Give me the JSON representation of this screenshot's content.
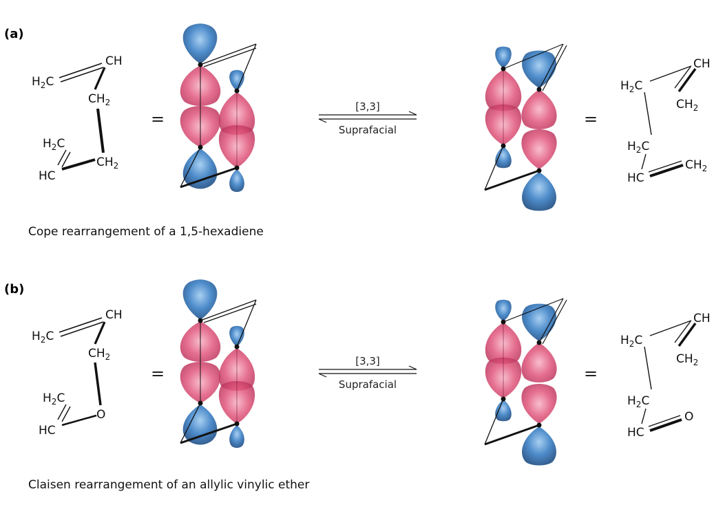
{
  "panels": [
    {
      "tag": "(a)",
      "caption": "Cope rearrangement of a 1,5-hexadiene",
      "equals": "=",
      "arrow_top": "[3,3]",
      "arrow_bottom": "Suprafacial",
      "reactant": {
        "ch": "CH",
        "h2c_top": "H",
        "ch2_mid": "CH",
        "h2c_low": "H",
        "hc": "HC",
        "ch2_low": "CH"
      },
      "product": {
        "ch": "CH",
        "h2c_top": "H",
        "ch2_right": "CH",
        "h2c_mid": "H",
        "hc": "HC",
        "ch2_low": "CH"
      }
    },
    {
      "tag": "(b)",
      "caption": "Claisen rearrangement of an allylic vinylic ether",
      "equals": "=",
      "arrow_top": "[3,3]",
      "arrow_bottom": "Suprafacial",
      "reactant": {
        "ch": "CH",
        "h2c_top": "H",
        "ch2_mid": "CH",
        "h2c_low": "H",
        "hc": "HC",
        "o": "O"
      },
      "product": {
        "ch": "CH",
        "h2c_top": "H",
        "ch2_right": "CH",
        "h2c_mid": "H",
        "hc": "HC",
        "o": "O"
      }
    }
  ],
  "sub2": "2",
  "c": "C",
  "colors": {
    "lobe_blue": "#3a7fc4",
    "lobe_pink": "#e0557a",
    "line": "#111111"
  }
}
